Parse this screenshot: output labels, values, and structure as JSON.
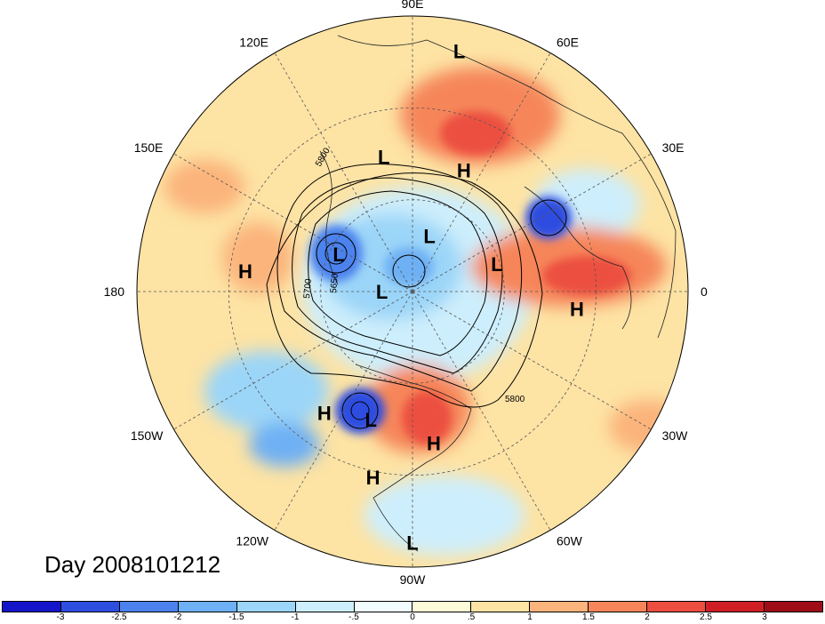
{
  "title": "Day 2008101212",
  "longitude_labels": [
    {
      "text": "90E",
      "lon": 90
    },
    {
      "text": "60E",
      "lon": 60
    },
    {
      "text": "30E",
      "lon": 30
    },
    {
      "text": "0",
      "lon": 0
    },
    {
      "text": "30W",
      "lon": -30
    },
    {
      "text": "60W",
      "lon": -60
    },
    {
      "text": "90W",
      "lon": -90
    },
    {
      "text": "120W",
      "lon": -120
    },
    {
      "text": "150W",
      "lon": -150
    },
    {
      "text": "180",
      "lon": 180
    },
    {
      "text": "150E",
      "lon": 150
    },
    {
      "text": "120E",
      "lon": 120
    }
  ],
  "pressure_centers": [
    {
      "type": "L",
      "lat": 10,
      "lon": 79
    },
    {
      "type": "L",
      "lat": 45,
      "lon": 102
    },
    {
      "type": "H",
      "lat": 47,
      "lon": 67
    },
    {
      "type": "L",
      "lat": 71,
      "lon": 73
    },
    {
      "type": "L",
      "lat": 61,
      "lon": 18
    },
    {
      "type": "H",
      "lat": 36,
      "lon": -6
    },
    {
      "type": "L",
      "lat": 80,
      "lon": 180
    },
    {
      "type": "L",
      "lat": 63,
      "lon": 153
    },
    {
      "type": "H",
      "lat": 35,
      "lon": 173
    },
    {
      "type": "H",
      "lat": 41,
      "lon": -126
    },
    {
      "type": "L",
      "lat": 46,
      "lon": -108
    },
    {
      "type": "H",
      "lat": 40,
      "lon": -82
    },
    {
      "type": "H",
      "lat": 28,
      "lon": -102
    },
    {
      "type": "L",
      "lat": 8,
      "lon": -90
    }
  ],
  "contour_labels": [
    "5800",
    "5700",
    "5650",
    "5800"
  ],
  "colorbar": {
    "colors": [
      "#1414c8",
      "#2e4ee0",
      "#4c82ee",
      "#6eb0f4",
      "#9bd5f8",
      "#cdeefc",
      "#f0fcfe",
      "#fefbd8",
      "#fde3a4",
      "#fbb47c",
      "#f6865a",
      "#ec4f40",
      "#cf1f24",
      "#9e0c18"
    ],
    "ticks": [
      "-3",
      "-2.5",
      "-2",
      "-1.5",
      "-1",
      "-.5",
      "0",
      ".5",
      "1",
      "1.5",
      "2",
      "2.5",
      "3"
    ]
  }
}
